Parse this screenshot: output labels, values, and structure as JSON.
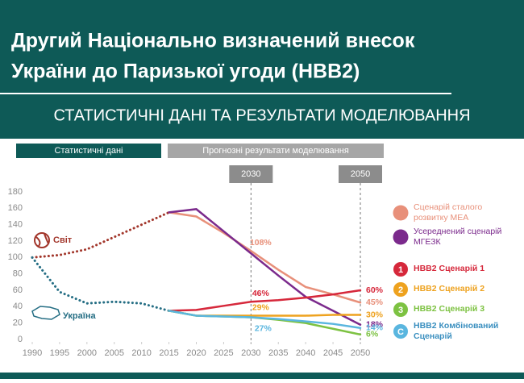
{
  "header": {
    "title": [
      "Другий Національно визначений внесок",
      "України до Паризької угоди (НВВ2)"
    ],
    "subtitle": "СТАТИСТИЧНІ ДАНІ ТА РЕЗУЛЬТАТИ МОДЕЛЮВАННЯ"
  },
  "chart_data": {
    "type": "line",
    "periods": [
      "Статистичні дані",
      "Прогнозні результати моделювання"
    ],
    "reference_lines": [
      2030,
      2050
    ],
    "x": [
      1990,
      1995,
      2000,
      2005,
      2010,
      2015,
      2020,
      2025,
      2030,
      2035,
      2040,
      2045,
      2050
    ],
    "xlim": [
      1990,
      2050
    ],
    "xticks": [
      1990,
      1995,
      2000,
      2005,
      2010,
      2015,
      2020,
      2025,
      2030,
      2035,
      2040,
      2045,
      2050
    ],
    "ylim": [
      0,
      180
    ],
    "yticks": [
      0,
      20,
      40,
      60,
      80,
      100,
      120,
      140,
      160,
      180
    ],
    "series": [
      {
        "name": "Світ",
        "color": "#a2362b",
        "style": "dotted",
        "values": [
          100,
          103,
          110,
          125,
          140,
          155,
          null,
          null,
          null,
          null,
          null,
          null,
          null
        ]
      },
      {
        "name": "Україна",
        "color": "#256e84",
        "style": "dotted",
        "values": [
          100,
          58,
          44,
          46,
          44,
          35,
          null,
          null,
          null,
          null,
          null,
          null,
          null
        ]
      },
      {
        "name": "Сценарій сталого розвитку МЕА",
        "color": "#e8907a",
        "values": [
          null,
          null,
          null,
          null,
          null,
          155,
          150,
          130,
          108,
          85,
          64,
          55,
          45
        ],
        "value_labels": [
          null,
          null,
          null,
          null,
          null,
          null,
          null,
          null,
          "108%",
          null,
          null,
          null,
          "45%"
        ]
      },
      {
        "name": "Усереднений сценарій МГЕЗК",
        "color": "#7b2a8c",
        "values": [
          null,
          null,
          null,
          null,
          null,
          155,
          159,
          132,
          105,
          78,
          52,
          35,
          18
        ],
        "value_labels": [
          null,
          null,
          null,
          null,
          null,
          null,
          null,
          null,
          null,
          null,
          null,
          null,
          "18%"
        ]
      },
      {
        "name": "НВВ2 Сценарій 1",
        "badge": "1",
        "color": "#d6283b",
        "values": [
          null,
          null,
          null,
          null,
          null,
          35,
          36,
          41,
          46,
          48,
          51,
          55,
          60
        ],
        "value_labels": [
          null,
          null,
          null,
          null,
          null,
          null,
          null,
          null,
          "46%",
          null,
          null,
          null,
          "60%"
        ]
      },
      {
        "name": "НВВ2 Сценарій 2",
        "badge": "2",
        "color": "#eea21f",
        "values": [
          null,
          null,
          null,
          null,
          null,
          35,
          29,
          29,
          29,
          29,
          29,
          30,
          30
        ],
        "value_labels": [
          null,
          null,
          null,
          null,
          null,
          null,
          null,
          null,
          "29%",
          null,
          null,
          null,
          "30%"
        ]
      },
      {
        "name": "НВВ2 Сценарій 3",
        "badge": "3",
        "color": "#7dc242",
        "values": [
          null,
          null,
          null,
          null,
          null,
          35,
          29,
          28,
          27,
          24,
          20,
          13,
          6
        ],
        "value_labels": [
          null,
          null,
          null,
          null,
          null,
          null,
          null,
          null,
          null,
          null,
          null,
          null,
          "6%"
        ]
      },
      {
        "name": "НВВ2 Комбінований Сценарій",
        "badge": "C",
        "color": "#5ab6df",
        "values": [
          null,
          null,
          null,
          null,
          null,
          35,
          29,
          28,
          27,
          25,
          22,
          19,
          14
        ],
        "value_labels": [
          null,
          null,
          null,
          null,
          null,
          null,
          null,
          null,
          "27%",
          null,
          null,
          null,
          "14%"
        ]
      }
    ]
  }
}
